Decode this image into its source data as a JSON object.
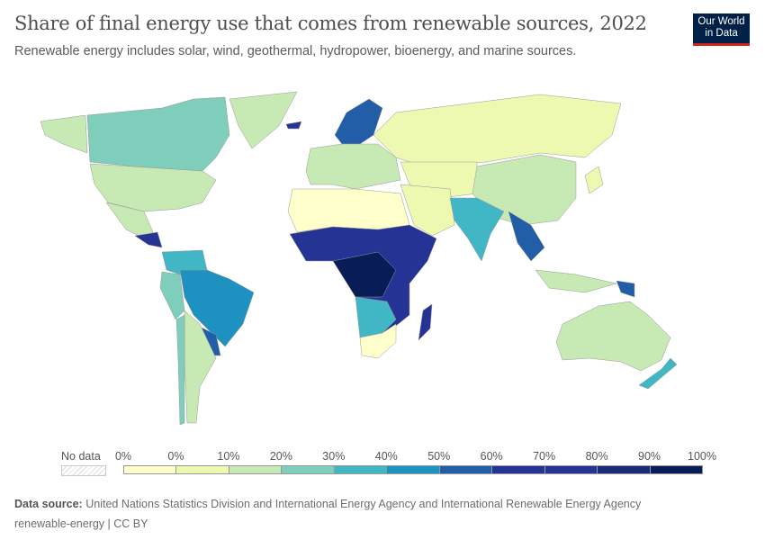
{
  "header": {
    "title": "Share of final energy use that comes from renewable sources, 2022",
    "subtitle": "Renewable energy includes solar, wind, geothermal, hydropower, bioenergy, and marine sources.",
    "logo_text": "Our World in Data"
  },
  "legend": {
    "no_data_label": "No data",
    "ticks": [
      "0%",
      "0%",
      "10%",
      "20%",
      "30%",
      "40%",
      "50%",
      "60%",
      "70%",
      "80%",
      "90%",
      "100%"
    ],
    "bin_colors": [
      "#ffffcc",
      "#edf8b1",
      "#c7e9b4",
      "#7fcdbb",
      "#41b6c4",
      "#1d91c0",
      "#225ea8",
      "#253494",
      "#253494",
      "#1a2a78",
      "#081d58"
    ]
  },
  "footer": {
    "source_label": "Data source:",
    "source_text": "United Nations Statistics Division and International Energy Agency and International Renewable Energy Agency",
    "license": "renewable-energy | CC BY"
  }
}
